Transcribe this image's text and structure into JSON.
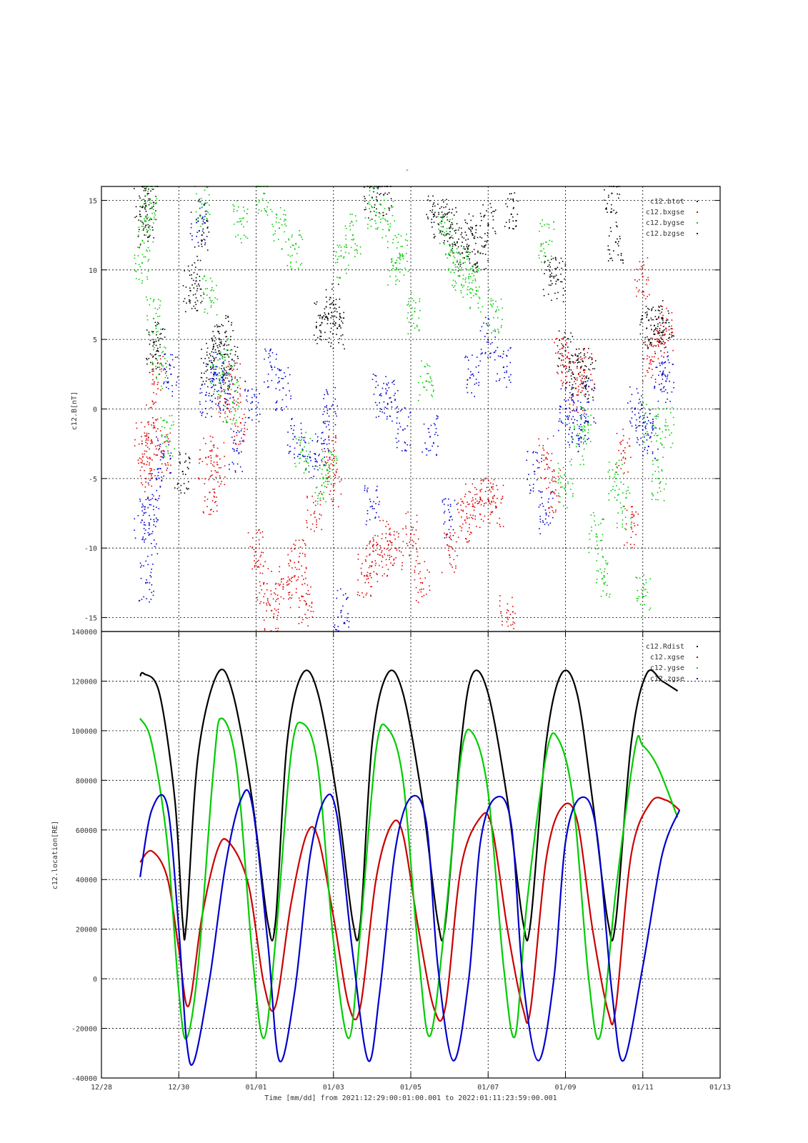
{
  "header_mark": "-",
  "chart_data": [
    {
      "type": "scatter",
      "ylabel": "c12.B[nT]",
      "ylim": [
        -16,
        16
      ],
      "xlim_days": [
        0,
        16
      ],
      "yticks": [
        -15,
        -10,
        -5,
        0,
        5,
        10,
        15
      ],
      "grid": true,
      "legend_position": "top-right",
      "series": [
        {
          "name": "c12.btot",
          "color": "#000000",
          "points": [
            [
              1.05,
              14.5
            ],
            [
              1.15,
              13.2
            ],
            [
              1.25,
              15.1
            ],
            [
              1.35,
              4.8
            ],
            [
              1.45,
              4.2
            ],
            [
              2.1,
              -4.5
            ],
            [
              2.3,
              8.5
            ],
            [
              2.45,
              9.2
            ],
            [
              2.6,
              12.5
            ],
            [
              2.75,
              3.2
            ],
            [
              2.9,
              4.5
            ],
            [
              3.05,
              4.0
            ],
            [
              3.2,
              5.5
            ],
            [
              3.35,
              3.1
            ],
            [
              5.7,
              6.2
            ],
            [
              5.85,
              6.5
            ],
            [
              6.0,
              7.5
            ],
            [
              6.1,
              5.8
            ],
            [
              7.0,
              15.2
            ],
            [
              7.3,
              15.4
            ],
            [
              8.6,
              14.0
            ],
            [
              8.8,
              13.5
            ],
            [
              9.0,
              13.0
            ],
            [
              9.2,
              12.0
            ],
            [
              9.4,
              11.5
            ],
            [
              9.6,
              12.5
            ],
            [
              9.8,
              11.2
            ],
            [
              10.0,
              13.2
            ],
            [
              10.6,
              14.0
            ],
            [
              11.6,
              9.5
            ],
            [
              11.8,
              9.3
            ],
            [
              12.0,
              4.2
            ],
            [
              12.2,
              2.5
            ],
            [
              12.4,
              3.0
            ],
            [
              12.6,
              2.2
            ],
            [
              13.2,
              15.5
            ],
            [
              13.3,
              12.0
            ],
            [
              14.1,
              5.8
            ],
            [
              14.3,
              6.0
            ],
            [
              14.5,
              5.5
            ],
            [
              14.6,
              6.2
            ]
          ]
        },
        {
          "name": "c12.bxgse",
          "color": "#dd0000",
          "points": [
            [
              1.05,
              -2.5
            ],
            [
              1.15,
              -5.0
            ],
            [
              1.25,
              -3.5
            ],
            [
              1.35,
              -1.0
            ],
            [
              1.5,
              2.5
            ],
            [
              1.6,
              -3.0
            ],
            [
              2.7,
              -3.5
            ],
            [
              2.8,
              -6.0
            ],
            [
              3.0,
              -4.0
            ],
            [
              3.2,
              0.5
            ],
            [
              3.4,
              1.8
            ],
            [
              3.6,
              -1.0
            ],
            [
              4.0,
              -10.0
            ],
            [
              4.2,
              -12.5
            ],
            [
              4.4,
              -14.5
            ],
            [
              4.7,
              -12.8
            ],
            [
              5.0,
              -12.0
            ],
            [
              5.1,
              -11.0
            ],
            [
              5.3,
              -14.0
            ],
            [
              5.5,
              -7.5
            ],
            [
              5.9,
              -3.5
            ],
            [
              6.0,
              -5.5
            ],
            [
              6.8,
              -12.0
            ],
            [
              7.0,
              -11.0
            ],
            [
              7.2,
              -10.5
            ],
            [
              7.4,
              -9.5
            ],
            [
              7.6,
              -10.0
            ],
            [
              8.0,
              -9.0
            ],
            [
              8.3,
              -12.5
            ],
            [
              9.0,
              -10.5
            ],
            [
              9.4,
              -8.0
            ],
            [
              9.6,
              -7.0
            ],
            [
              9.8,
              -6.5
            ],
            [
              10.0,
              -6.5
            ],
            [
              10.2,
              -7.0
            ],
            [
              10.5,
              -15.0
            ],
            [
              11.5,
              -3.5
            ],
            [
              11.7,
              -6.0
            ],
            [
              11.9,
              3.5
            ],
            [
              12.1,
              3.0
            ],
            [
              12.3,
              1.0
            ],
            [
              12.5,
              2.8
            ],
            [
              13.5,
              -3.0
            ],
            [
              13.7,
              -8.5
            ],
            [
              14.0,
              9.5
            ],
            [
              14.2,
              3.5
            ],
            [
              14.4,
              5.0
            ],
            [
              14.6,
              5.8
            ]
          ]
        },
        {
          "name": "c12.bygse",
          "color": "#00cc00",
          "points": [
            [
              1.05,
              10.5
            ],
            [
              1.15,
              13.5
            ],
            [
              1.25,
              15.0
            ],
            [
              1.35,
              6.5
            ],
            [
              1.5,
              3.0
            ],
            [
              1.7,
              -2.0
            ],
            [
              2.6,
              14.5
            ],
            [
              2.8,
              8.0
            ],
            [
              3.0,
              2.5
            ],
            [
              3.2,
              3.5
            ],
            [
              3.4,
              0.5
            ],
            [
              3.6,
              13.5
            ],
            [
              4.2,
              15.5
            ],
            [
              4.6,
              13.0
            ],
            [
              5.0,
              11.5
            ],
            [
              5.2,
              -3.0
            ],
            [
              5.7,
              -5.5
            ],
            [
              5.9,
              -4.5
            ],
            [
              6.2,
              11.0
            ],
            [
              6.5,
              12.5
            ],
            [
              7.0,
              14.5
            ],
            [
              7.4,
              13.5
            ],
            [
              7.6,
              10.5
            ],
            [
              7.8,
              11.0
            ],
            [
              8.1,
              7.0
            ],
            [
              8.4,
              2.0
            ],
            [
              8.9,
              12.5
            ],
            [
              9.1,
              10.5
            ],
            [
              9.3,
              10.0
            ],
            [
              9.5,
              9.5
            ],
            [
              9.7,
              8.5
            ],
            [
              10.2,
              7.0
            ],
            [
              11.5,
              12.0
            ],
            [
              12.0,
              -5.5
            ],
            [
              12.3,
              -2.5
            ],
            [
              12.5,
              -1.0
            ],
            [
              12.8,
              -9.0
            ],
            [
              13.0,
              -12.0
            ],
            [
              13.3,
              -5.0
            ],
            [
              13.5,
              -7.0
            ],
            [
              14.0,
              -13.5
            ],
            [
              14.2,
              -1.0
            ],
            [
              14.4,
              -5.0
            ],
            [
              14.6,
              -1.5
            ]
          ]
        },
        {
          "name": "c12.bzgse",
          "color": "#0000cc",
          "points": [
            [
              1.05,
              -8.0
            ],
            [
              1.15,
              -12.5
            ],
            [
              1.25,
              -9.0
            ],
            [
              1.4,
              -6.5
            ],
            [
              1.6,
              -3.5
            ],
            [
              1.8,
              2.5
            ],
            [
              2.5,
              13.5
            ],
            [
              2.7,
              1.0
            ],
            [
              2.9,
              2.5
            ],
            [
              3.1,
              1.5
            ],
            [
              3.3,
              2.0
            ],
            [
              3.5,
              -3.0
            ],
            [
              3.9,
              0.5
            ],
            [
              4.4,
              3.0
            ],
            [
              4.7,
              1.5
            ],
            [
              5.0,
              -2.0
            ],
            [
              5.4,
              -3.5
            ],
            [
              5.7,
              -2.5
            ],
            [
              5.9,
              0.0
            ],
            [
              6.2,
              -14.5
            ],
            [
              7.0,
              -7.0
            ],
            [
              7.2,
              1.0
            ],
            [
              7.5,
              0.5
            ],
            [
              7.8,
              -1.5
            ],
            [
              8.5,
              -2.0
            ],
            [
              9.0,
              -8.0
            ],
            [
              9.6,
              2.5
            ],
            [
              10.0,
              5.0
            ],
            [
              10.4,
              3.0
            ],
            [
              11.2,
              -4.5
            ],
            [
              11.5,
              -7.5
            ],
            [
              12.0,
              0.0
            ],
            [
              12.2,
              -1.0
            ],
            [
              12.4,
              -1.5
            ],
            [
              12.6,
              0.5
            ],
            [
              13.8,
              0.0
            ],
            [
              14.0,
              -1.5
            ],
            [
              14.2,
              -2.0
            ],
            [
              14.5,
              2.5
            ],
            [
              14.6,
              2.0
            ]
          ]
        }
      ]
    },
    {
      "type": "line",
      "xlabel": "Time [mm/dd]  from 2021:12:29:00:01:00.001  to  2022:01:11:23:59:00.001",
      "ylabel": "c12.location[RE]",
      "ylim": [
        -40000,
        140000
      ],
      "xlim_days": [
        0,
        16
      ],
      "yticks": [
        -40000,
        -20000,
        0,
        20000,
        40000,
        60000,
        80000,
        100000,
        120000,
        140000
      ],
      "x_tick_labels": [
        "12/28",
        "12/30",
        "01/01",
        "01/03",
        "01/05",
        "01/07",
        "01/09",
        "01/11",
        "01/13"
      ],
      "x_tick_days": [
        0,
        2,
        4,
        6,
        8,
        10,
        12,
        14,
        16
      ],
      "grid": true,
      "legend_position": "top-right",
      "series": [
        {
          "name": "c12.Rdist",
          "color": "#000000",
          "x": [
            1.0,
            1.1,
            1.5,
            1.9,
            2.1,
            2.2,
            2.5,
            3.0,
            3.4,
            3.9,
            4.3,
            4.5,
            4.8,
            5.2,
            5.6,
            6.1,
            6.5,
            6.7,
            7.0,
            7.4,
            7.8,
            8.3,
            8.7,
            8.9,
            9.3,
            9.6,
            10.0,
            10.5,
            10.9,
            11.1,
            11.5,
            11.9,
            12.3,
            12.7,
            13.1,
            13.3,
            13.7,
            14.1,
            14.5,
            14.9
          ],
          "values": [
            122000,
            123000,
            115000,
            72000,
            23000,
            23000,
            90000,
            123000,
            115000,
            72000,
            23000,
            23000,
            95000,
            123000,
            115000,
            72000,
            23000,
            23000,
            95000,
            123000,
            115000,
            72000,
            23000,
            23000,
            95000,
            123000,
            115000,
            72000,
            23000,
            23000,
            95000,
            123000,
            115000,
            72000,
            23000,
            23000,
            95000,
            123000,
            120000,
            116000
          ]
        },
        {
          "name": "c12.xgse",
          "color": "#cc0000",
          "x": [
            1.0,
            1.3,
            1.7,
            2.0,
            2.25,
            2.6,
            3.0,
            3.3,
            3.8,
            4.2,
            4.5,
            4.9,
            5.3,
            5.6,
            6.0,
            6.4,
            6.7,
            7.1,
            7.5,
            7.8,
            8.2,
            8.6,
            8.9,
            9.3,
            9.8,
            10.1,
            10.5,
            10.9,
            11.1,
            11.5,
            11.9,
            12.3,
            12.7,
            13.1,
            13.3,
            13.7,
            14.2,
            14.6,
            14.95
          ],
          "values": [
            47000,
            51500,
            41000,
            12000,
            -11000,
            25000,
            52000,
            55000,
            38000,
            -2000,
            -11000,
            30000,
            58000,
            57000,
            25000,
            -11000,
            -11000,
            40000,
            62000,
            58000,
            20000,
            -12000,
            -11000,
            45000,
            65000,
            61000,
            20000,
            -12000,
            -12000,
            48000,
            69000,
            64000,
            20000,
            -13000,
            -12000,
            50000,
            71000,
            72000,
            68000
          ]
        },
        {
          "name": "c12.ygse",
          "color": "#00cc00",
          "x": [
            1.0,
            1.3,
            1.7,
            2.0,
            2.2,
            2.5,
            2.9,
            3.1,
            3.5,
            3.9,
            4.2,
            4.5,
            4.9,
            5.2,
            5.6,
            6.0,
            6.4,
            6.7,
            7.1,
            7.4,
            7.8,
            8.2,
            8.5,
            8.9,
            9.3,
            9.6,
            10.0,
            10.4,
            10.7,
            11.0,
            11.5,
            11.8,
            12.2,
            12.6,
            12.9,
            13.3,
            13.8,
            14.0,
            14.4,
            14.9
          ],
          "values": [
            105000,
            95000,
            55000,
            -5000,
            -24000,
            5000,
            85000,
            105000,
            85000,
            10000,
            -24000,
            15000,
            90000,
            103000,
            85000,
            15000,
            -24000,
            20000,
            92000,
            101000,
            80000,
            10000,
            -23000,
            25000,
            90000,
            99000,
            75000,
            5000,
            -23000,
            30000,
            90000,
            97000,
            72000,
            0,
            -23000,
            35000,
            93000,
            94000,
            85000,
            65000
          ]
        },
        {
          "name": "c12.zgse",
          "color": "#0000cc",
          "x": [
            1.0,
            1.3,
            1.7,
            2.0,
            2.2,
            2.4,
            2.8,
            3.2,
            3.6,
            3.9,
            4.3,
            4.6,
            5.0,
            5.4,
            5.8,
            6.1,
            6.5,
            6.9,
            7.2,
            7.6,
            8.0,
            8.4,
            8.7,
            9.1,
            9.5,
            9.8,
            10.2,
            10.6,
            10.9,
            11.3,
            11.7,
            12.0,
            12.4,
            12.8,
            13.2,
            13.5,
            14.0,
            14.5,
            14.95
          ],
          "values": [
            41000,
            68000,
            70000,
            20000,
            -25000,
            -33000,
            0,
            45000,
            72000,
            70000,
            15000,
            -33000,
            -5000,
            50000,
            73000,
            65000,
            10000,
            -33000,
            -5000,
            52000,
            73000,
            63000,
            5000,
            -33000,
            0,
            55000,
            73000,
            62000,
            0,
            -33000,
            0,
            55000,
            73000,
            60000,
            -5000,
            -33000,
            5000,
            50000,
            68000
          ]
        }
      ]
    }
  ]
}
